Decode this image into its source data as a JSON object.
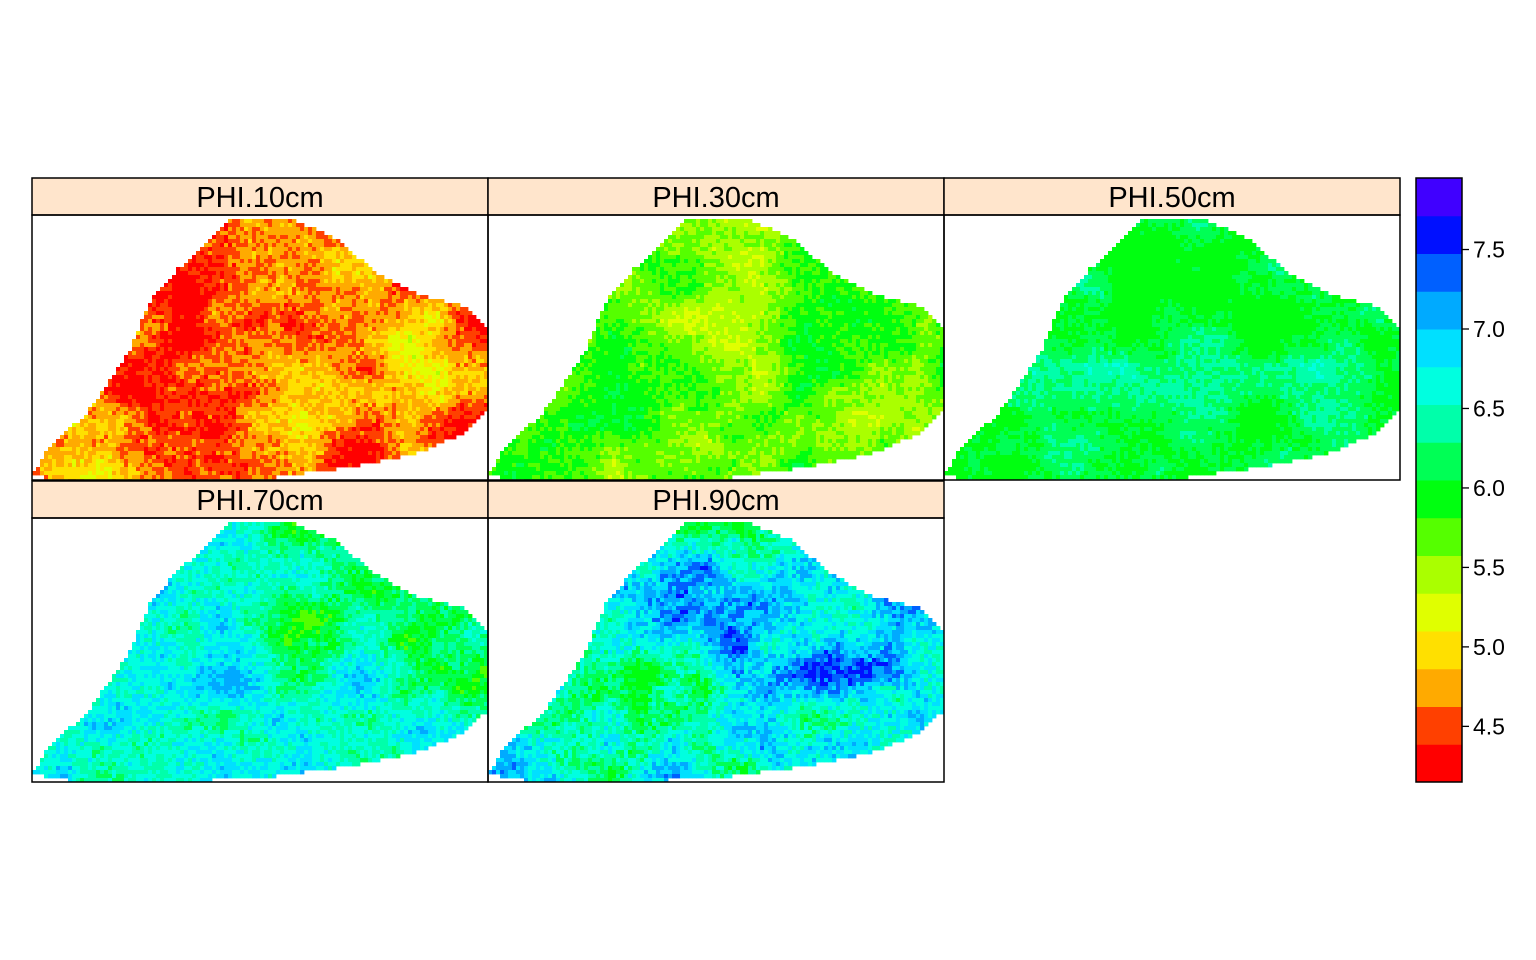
{
  "chart_data": {
    "type": "heatmap",
    "panels": [
      {
        "label": "PHI.10cm",
        "depth_cm": 10,
        "typical_value": 4.7,
        "range": [
          4.2,
          5.4
        ]
      },
      {
        "label": "PHI.30cm",
        "depth_cm": 30,
        "typical_value": 5.7,
        "range": [
          5.2,
          6.1
        ]
      },
      {
        "label": "PHI.50cm",
        "depth_cm": 50,
        "typical_value": 6.1,
        "range": [
          5.9,
          6.8
        ]
      },
      {
        "label": "PHI.70cm",
        "depth_cm": 70,
        "typical_value": 6.4,
        "range": [
          5.8,
          7.2
        ]
      },
      {
        "label": "PHI.90cm",
        "depth_cm": 90,
        "typical_value": 6.7,
        "range": [
          5.9,
          7.6
        ]
      }
    ],
    "colorkey": {
      "range": [
        4.15,
        7.95
      ],
      "ticks": [
        "4.5",
        "5.0",
        "5.5",
        "6.0",
        "6.5",
        "7.0",
        "7.5"
      ],
      "tick_values": [
        4.5,
        5.0,
        5.5,
        6.0,
        6.5,
        7.0,
        7.5
      ],
      "colors": [
        "#ff0000",
        "#ff4000",
        "#ffaa00",
        "#ffe000",
        "#e0ff00",
        "#aaff00",
        "#55ff00",
        "#00ff10",
        "#00ff55",
        "#00ffaa",
        "#00ffe0",
        "#00e0ff",
        "#00aaff",
        "#0060ff",
        "#0010ff",
        "#4000ff"
      ]
    },
    "strip_color": "#ffe5cc",
    "grid": false,
    "legend_position": "right"
  }
}
